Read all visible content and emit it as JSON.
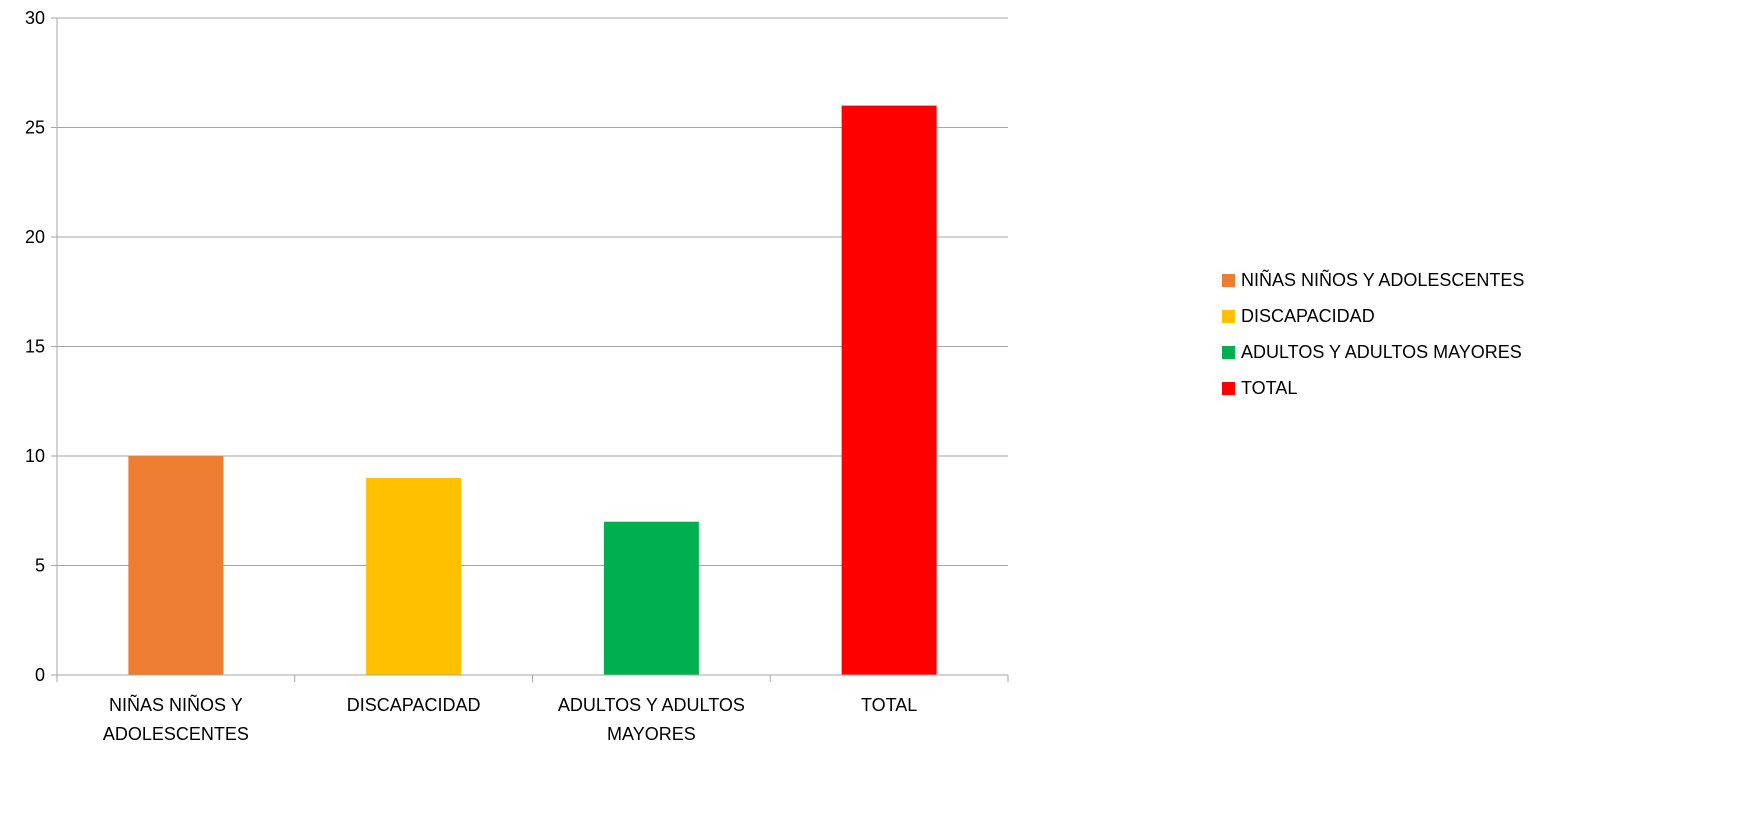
{
  "chart_data": {
    "type": "bar",
    "title": "",
    "xlabel": "",
    "ylabel": "",
    "categories": [
      "NIÑAS NIÑOS Y ADOLESCENTES",
      "DISCAPACIDAD",
      "ADULTOS Y ADULTOS MAYORES",
      "TOTAL"
    ],
    "category_labels": [
      [
        "NIÑAS NIÑOS Y",
        "ADOLESCENTES"
      ],
      [
        "DISCAPACIDAD"
      ],
      [
        "ADULTOS Y ADULTOS",
        "MAYORES"
      ],
      [
        "TOTAL"
      ]
    ],
    "values": [
      10,
      9,
      7,
      26
    ],
    "colors": [
      "#ED7D31",
      "#FFC000",
      "#00B050",
      "#FF0000"
    ],
    "ylim": [
      0,
      30
    ],
    "yticks": [
      0,
      5,
      10,
      15,
      20,
      25,
      30
    ],
    "grid": true,
    "legend_position": "right",
    "legend": [
      {
        "label": "NIÑAS NIÑOS Y ADOLESCENTES",
        "color": "#ED7D31"
      },
      {
        "label": "DISCAPACIDAD",
        "color": "#FFC000"
      },
      {
        "label": "ADULTOS Y ADULTOS MAYORES",
        "color": "#00B050"
      },
      {
        "label": "TOTAL",
        "color": "#FF0000"
      }
    ]
  }
}
